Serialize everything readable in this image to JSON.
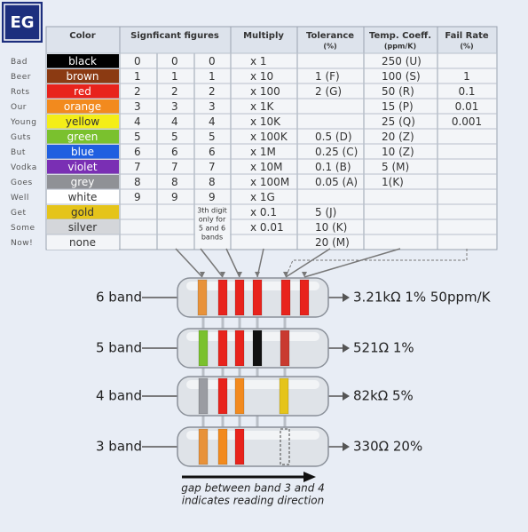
{
  "logo": "EG",
  "table": {
    "header": {
      "color": "Color",
      "significant": "Signficant figures",
      "multiply": "Multiply",
      "tolerance": "Tolerance",
      "tolerance_unit": "(%)",
      "tempco": "Temp. Coeff.",
      "tempco_unit": "(ppm/K)",
      "failrate": "Fail Rate",
      "failrate_unit": "(%)"
    },
    "rows": [
      {
        "mnemonic": "Bad",
        "color": "black",
        "swatch": "#000000",
        "ink": "#ffffff",
        "digits": [
          "0",
          "0",
          "0"
        ],
        "multiply": "x 1",
        "tolerance": null,
        "tempco": "250 (U)",
        "failrate": null
      },
      {
        "mnemonic": "Beer",
        "color": "brown",
        "swatch": "#8b3a12",
        "ink": "#ffffff",
        "digits": [
          "1",
          "1",
          "1"
        ],
        "multiply": "x 10",
        "tolerance": "1 (F)",
        "tempco": "100 (S)",
        "failrate": "1"
      },
      {
        "mnemonic": "Rots",
        "color": "red",
        "swatch": "#e8231c",
        "ink": "#ffffff",
        "digits": [
          "2",
          "2",
          "2"
        ],
        "multiply": "x 100",
        "tolerance": "2 (G)",
        "tempco": "50 (R)",
        "failrate": "0.1"
      },
      {
        "mnemonic": "Our",
        "color": "orange",
        "swatch": "#f28a1e",
        "ink": "#ffffff",
        "digits": [
          "3",
          "3",
          "3"
        ],
        "multiply": "x 1K",
        "tolerance": null,
        "tempco": "15 (P)",
        "failrate": "0.01"
      },
      {
        "mnemonic": "Young",
        "color": "yellow",
        "swatch": "#f4ee18",
        "ink": "#333333",
        "digits": [
          "4",
          "4",
          "4"
        ],
        "multiply": "x 10K",
        "tolerance": null,
        "tempco": "25 (Q)",
        "failrate": "0.001"
      },
      {
        "mnemonic": "Guts",
        "color": "green",
        "swatch": "#7ac12e",
        "ink": "#ffffff",
        "digits": [
          "5",
          "5",
          "5"
        ],
        "multiply": "x 100K",
        "tolerance": "0.5 (D)",
        "tempco": "20 (Z)",
        "failrate": null
      },
      {
        "mnemonic": "But",
        "color": "blue",
        "swatch": "#1f5fe0",
        "ink": "#ffffff",
        "digits": [
          "6",
          "6",
          "6"
        ],
        "multiply": "x 1M",
        "tolerance": "0.25 (C)",
        "tempco": "10 (Z)",
        "failrate": null
      },
      {
        "mnemonic": "Vodka",
        "color": "violet",
        "swatch": "#7a2fb4",
        "ink": "#ffffff",
        "digits": [
          "7",
          "7",
          "7"
        ],
        "multiply": "x 10M",
        "tolerance": "0.1 (B)",
        "tempco": "5 (M)",
        "failrate": null
      },
      {
        "mnemonic": "Goes",
        "color": "grey",
        "swatch": "#8f9196",
        "ink": "#ffffff",
        "digits": [
          "8",
          "8",
          "8"
        ],
        "multiply": "x 100M",
        "tolerance": "0.05 (A)",
        "tempco": "1(K)",
        "failrate": null
      },
      {
        "mnemonic": "Well",
        "color": "white",
        "swatch": "#ffffff",
        "ink": "#333333",
        "digits": [
          "9",
          "9",
          "9"
        ],
        "multiply": "x 1G",
        "tolerance": null,
        "tempco": null,
        "failrate": null
      },
      {
        "mnemonic": "Get",
        "color": "gold",
        "swatch": "#e5c41a",
        "ink": "#333333",
        "digits": [
          null,
          null,
          null
        ],
        "multiply": "x 0.1",
        "tolerance": "5 (J)",
        "tempco": null,
        "failrate": null
      },
      {
        "mnemonic": "Some",
        "color": "silver",
        "swatch": "#d4d6da",
        "ink": "#333333",
        "digits": [
          null,
          null,
          null
        ],
        "multiply": "x 0.01",
        "tolerance": "10 (K)",
        "tempco": null,
        "failrate": null
      },
      {
        "mnemonic": "Now!",
        "color": "none",
        "swatch": "#f3f5f8",
        "ink": "#333333",
        "digits": [
          null,
          null,
          null
        ],
        "multiply": null,
        "tolerance": "20 (M)",
        "tempco": null,
        "failrate": null
      }
    ],
    "third_digit_note": [
      "3th digit",
      "only for",
      "5 and 6",
      "bands"
    ]
  },
  "resistors": [
    {
      "label": "6 band",
      "value": "3.21kΩ 1% 50ppm/K",
      "bands": [
        "#e8923a",
        "#e8231c",
        "#e8231c",
        "#e8231c",
        "#e8231c",
        "#e8231c"
      ],
      "pos": [
        228,
        251,
        270,
        290,
        322,
        343
      ]
    },
    {
      "label": "5 band",
      "value": "521Ω 1%",
      "bands": [
        "#7ac12e",
        "#e8231c",
        "#e8231c",
        "#111111",
        "#c93a30"
      ],
      "pos": [
        229,
        251,
        270,
        290,
        321
      ]
    },
    {
      "label": "4 band",
      "value": "82kΩ 5%",
      "bands": [
        "#9a9ca2",
        "#e8231c",
        "#f28a1e",
        "#e5c41a"
      ],
      "pos": [
        229,
        251,
        270,
        320
      ]
    },
    {
      "label": "3 band",
      "value": "330Ω 20%",
      "bands": [
        "#e8923a",
        "#f28a1e",
        "#e8231c"
      ],
      "pos": [
        229,
        251,
        270
      ]
    }
  ],
  "caption": [
    "gap between band 3 and 4",
    "indicates reading direction"
  ]
}
